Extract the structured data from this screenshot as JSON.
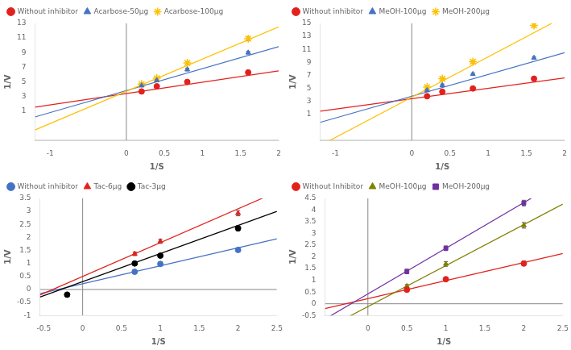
{
  "chart_data": [
    {
      "type": "scatter",
      "xlabel": "1/S",
      "ylabel": "1/V",
      "xlim": [
        -1.2,
        2.0
      ],
      "ylim": [
        -3,
        13
      ],
      "xticks": [
        -1,
        0,
        0.5,
        1,
        1.5,
        2
      ],
      "yticks": [
        1,
        3,
        5,
        7,
        9,
        11,
        13
      ],
      "grid": false,
      "legend": "upper left",
      "hlines": [
        -3
      ],
      "vlines": [
        0
      ],
      "series": [
        {
          "name": "Without inhibitor",
          "color": "#e2211c",
          "marker": "circle",
          "x": [
            0.2,
            0.4,
            0.8,
            1.6
          ],
          "values": [
            3.7,
            4.4,
            5.0,
            6.3
          ],
          "yerr": [
            0.12,
            0.12,
            0.12,
            0.12
          ],
          "line_slope": 1.55,
          "line_intercept": 3.42
        },
        {
          "name": "Acarbose-50μg",
          "color": "#4472c4",
          "marker": "triangle",
          "x": [
            0.2,
            0.4,
            0.8,
            1.6
          ],
          "values": [
            4.5,
            5.2,
            6.7,
            9.0
          ],
          "yerr": [
            0.12,
            0.12,
            0.18,
            0.18
          ],
          "line_slope": 3.0,
          "line_intercept": 3.82
        },
        {
          "name": "Acarbose-100μg",
          "color": "#ffc000",
          "marker": "star",
          "x": [
            0.2,
            0.4,
            0.8,
            1.6
          ],
          "values": [
            4.7,
            5.5,
            7.6,
            10.9
          ],
          "yerr": [
            0.12,
            0.18,
            0.18,
            0.22
          ],
          "line_slope": 4.4,
          "line_intercept": 3.72
        }
      ]
    },
    {
      "type": "scatter",
      "xlabel": "1/S",
      "ylabel": "1/V",
      "xlim": [
        -1.2,
        2.0
      ],
      "ylim": [
        -3,
        15
      ],
      "xticks": [
        -1,
        0,
        0.5,
        1,
        1.5,
        2
      ],
      "yticks": [
        1,
        3,
        5,
        7,
        9,
        11,
        13,
        15
      ],
      "grid": false,
      "legend": "upper left",
      "hlines": [
        -3
      ],
      "vlines": [
        0
      ],
      "series": [
        {
          "name": "Without inhibitor",
          "color": "#e2211c",
          "marker": "circle",
          "x": [
            0.2,
            0.4,
            0.8,
            1.6
          ],
          "values": [
            3.8,
            4.5,
            5.0,
            6.5
          ],
          "yerr": [
            0.12,
            0.12,
            0.12,
            0.18
          ],
          "line_slope": 1.6,
          "line_intercept": 3.42
        },
        {
          "name": "MeOH-100μg",
          "color": "#4472c4",
          "marker": "triangle",
          "x": [
            0.2,
            0.4,
            0.8,
            1.6
          ],
          "values": [
            4.7,
            5.5,
            7.2,
            9.7
          ],
          "yerr": [
            0.18,
            0.18,
            0.18,
            0.18
          ],
          "line_slope": 3.35,
          "line_intercept": 3.8
        },
        {
          "name": "MeOH-200μg",
          "color": "#ffc000",
          "marker": "star",
          "x": [
            0.2,
            0.4,
            0.8,
            1.6
          ],
          "values": [
            5.2,
            6.5,
            9.1,
            14.7
          ],
          "yerr": [
            0.18,
            0.18,
            0.18,
            0.28
          ],
          "line_slope": 6.2,
          "line_intercept": 3.65
        }
      ]
    },
    {
      "type": "scatter",
      "xlabel": "1/S",
      "ylabel": "1/V",
      "xlim": [
        -0.55,
        2.5
      ],
      "ylim": [
        -1.0,
        3.5
      ],
      "xticks": [
        -0.5,
        0,
        0.5,
        1,
        1.5,
        2,
        2.5
      ],
      "yticks": [
        -1,
        -0.5,
        0,
        0.5,
        1,
        1.5,
        2,
        2.5,
        3,
        3.5
      ],
      "grid": false,
      "legend": "upper left",
      "hlines": [
        0
      ],
      "vlines": [
        0
      ],
      "series": [
        {
          "name": "Without inhibitor",
          "color": "#4472c4",
          "marker": "circle",
          "x": [
            0.67,
            1.0,
            2.0
          ],
          "values": [
            0.68,
            0.98,
            1.52
          ],
          "yerr": [
            0.05,
            0.07,
            0.07
          ],
          "line_slope": 0.69,
          "line_intercept": 0.22
        },
        {
          "name": "Tac-6μg",
          "color": "#e2211c",
          "marker": "triangle",
          "x": [
            0.67,
            1.0,
            2.0
          ],
          "values": [
            1.37,
            1.85,
            2.93
          ],
          "yerr": [
            0.07,
            0.08,
            0.1
          ],
          "line_slope": 1.3,
          "line_intercept": 0.5
        },
        {
          "name": "Tac-3μg",
          "color": "#000000",
          "marker": "circle",
          "x": [
            0.67,
            1.0,
            2.0
          ],
          "values": [
            1.0,
            1.3,
            2.35
          ],
          "yerr": [
            0.05,
            0.07,
            0.1
          ],
          "line_slope": 1.08,
          "line_intercept": 0.3
        }
      ],
      "extra_points": [
        {
          "x": -0.2,
          "y": -0.2,
          "color": "#000000"
        }
      ]
    },
    {
      "type": "scatter",
      "xlabel": "1/S",
      "ylabel": "1/V",
      "xlim": [
        -0.55,
        2.5
      ],
      "ylim": [
        -0.5,
        4.5
      ],
      "xticks": [
        0,
        0.5,
        1,
        1.5,
        2,
        2.5
      ],
      "yticks": [
        -0.5,
        0,
        0.5,
        1,
        1.5,
        2,
        2.5,
        3,
        3.5,
        4,
        4.5
      ],
      "grid": false,
      "legend": "upper left",
      "hlines": [
        0
      ],
      "vlines": [
        0
      ],
      "series": [
        {
          "name": "Without Inhibitor",
          "color": "#e2211c",
          "marker": "circle",
          "x": [
            0.5,
            1.0,
            2.0
          ],
          "values": [
            0.6,
            1.05,
            1.72
          ],
          "yerr": [
            0.07,
            0.07,
            0.1
          ],
          "line_slope": 0.77,
          "line_intercept": 0.22
        },
        {
          "name": "MeOH-100μg",
          "color": "#808000",
          "marker": "triangle",
          "x": [
            0.5,
            1.0,
            2.0
          ],
          "values": [
            0.75,
            1.7,
            3.35
          ],
          "yerr": [
            0.07,
            0.1,
            0.12
          ],
          "line_slope": 1.75,
          "line_intercept": -0.12
        },
        {
          "name": "MeOH-200μg",
          "color": "#7030a0",
          "marker": "square",
          "x": [
            0.5,
            1.0,
            2.0
          ],
          "values": [
            1.38,
            2.37,
            4.3
          ],
          "yerr": [
            0.1,
            0.1,
            0.12
          ],
          "line_slope": 1.95,
          "line_intercept": 0.42
        }
      ]
    }
  ]
}
